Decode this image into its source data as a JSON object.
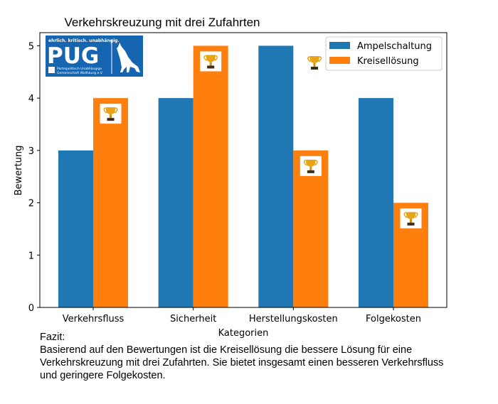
{
  "chart_data": {
    "type": "bar",
    "title": "Verkehrskreuzung mit drei Zufahrten",
    "xlabel": "Kategorien",
    "ylabel": "Bewertung",
    "categories": [
      "Verkehrsfluss",
      "Sicherheit",
      "Herstellungskosten",
      "Folgekosten"
    ],
    "series": [
      {
        "name": "Ampelschaltung",
        "color": "#1f77b4",
        "values": [
          3,
          4,
          5,
          4
        ]
      },
      {
        "name": "Kreisellösung",
        "color": "#ff7f0e",
        "values": [
          4,
          5,
          3,
          2
        ]
      }
    ],
    "ylim": [
      0,
      5.25
    ],
    "yticks": [
      0,
      1,
      2,
      3,
      4,
      5
    ],
    "grid": false,
    "legend": "top-right",
    "winner_markers": {
      "icon": "trophy-icon",
      "series": "Kreisellösung",
      "categories": [
        "Verkehrsfluss",
        "Sicherheit",
        "Herstellungskosten",
        "Folgekosten"
      ]
    }
  },
  "logo": {
    "tagline": "ehrlich. kritisch. unabhängig.",
    "name": "PUG",
    "subtitle_line1": "Parteipolitisch Unabhängige",
    "subtitle_line2": "Gemeinschaft Wolfsburg e.V."
  },
  "fazit": {
    "heading": "Fazit:",
    "text": "Basierend auf den Bewertungen ist die Kreisellösung die bessere Lösung für eine\nVerkehrskreuzung mit drei Zufahrten. Sie bietet insgesamt einen besseren Verkehrsfluss\nund geringere Folgekosten."
  }
}
